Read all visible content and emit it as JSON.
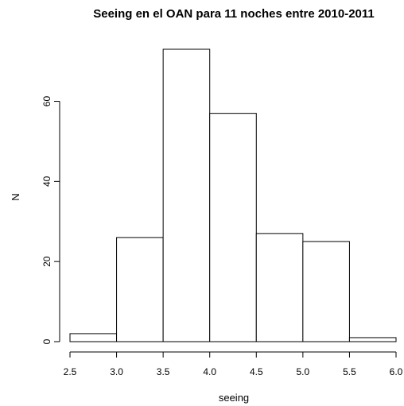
{
  "chart_data": {
    "type": "bar",
    "title": "Seeing en el OAN para 11 noches entre 2010-2011",
    "xlabel": "seeing",
    "ylabel": "N",
    "bins": [
      {
        "from": 2.5,
        "to": 3.0,
        "count": 2
      },
      {
        "from": 3.0,
        "to": 3.5,
        "count": 26
      },
      {
        "from": 3.5,
        "to": 4.0,
        "count": 73
      },
      {
        "from": 4.0,
        "to": 4.5,
        "count": 57
      },
      {
        "from": 4.5,
        "to": 5.0,
        "count": 27
      },
      {
        "from": 5.0,
        "to": 5.5,
        "count": 25
      },
      {
        "from": 5.5,
        "to": 6.0,
        "count": 1
      }
    ],
    "xlim": [
      2.5,
      6.0
    ],
    "ylim": [
      0,
      73
    ],
    "x_ticks": [
      "2.5",
      "3.0",
      "3.5",
      "4.0",
      "4.5",
      "5.0",
      "5.5",
      "6.0"
    ],
    "y_ticks": [
      "0",
      "20",
      "40",
      "60"
    ],
    "grid": false,
    "colors": {
      "bar_fill": "#ffffff",
      "bar_stroke": "#000000"
    }
  }
}
